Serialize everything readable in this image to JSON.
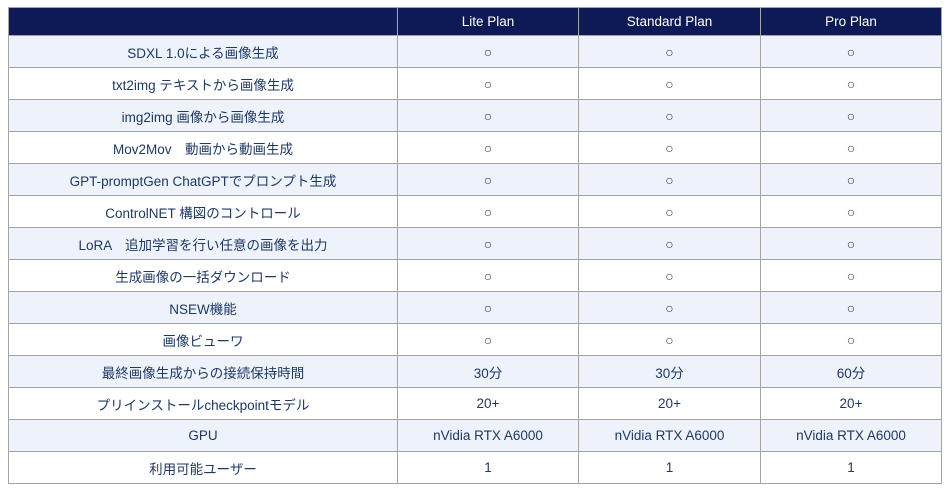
{
  "table": {
    "header": {
      "feature_label": "",
      "plans": [
        "Lite Plan",
        "Standard Plan",
        "Pro Plan"
      ]
    },
    "rows": [
      {
        "feature": "SDXL 1.0による画像生成",
        "values": [
          "○",
          "○",
          "○"
        ]
      },
      {
        "feature": "txt2img テキストから画像生成",
        "values": [
          "○",
          "○",
          "○"
        ]
      },
      {
        "feature": "img2img 画像から画像生成",
        "values": [
          "○",
          "○",
          "○"
        ]
      },
      {
        "feature": "Mov2Mov　動画から動画生成",
        "values": [
          "○",
          "○",
          "○"
        ]
      },
      {
        "feature": "GPT-promptGen ChatGPTでプロンプト生成",
        "values": [
          "○",
          "○",
          "○"
        ]
      },
      {
        "feature": "ControlNET 構図のコントロール",
        "values": [
          "○",
          "○",
          "○"
        ]
      },
      {
        "feature": "LoRA　追加学習を行い任意の画像を出力",
        "values": [
          "○",
          "○",
          "○"
        ]
      },
      {
        "feature": "生成画像の一括ダウンロード",
        "values": [
          "○",
          "○",
          "○"
        ]
      },
      {
        "feature": "NSEW機能",
        "values": [
          "○",
          "○",
          "○"
        ]
      },
      {
        "feature": "画像ビューワ",
        "values": [
          "○",
          "○",
          "○"
        ]
      },
      {
        "feature": "最終画像生成からの接続保持時間",
        "values": [
          "30分",
          "30分",
          "60分"
        ]
      },
      {
        "feature": "プリインストールcheckpointモデル",
        "values": [
          "20+",
          "20+",
          "20+"
        ]
      },
      {
        "feature": "GPU",
        "values": [
          "nVidia RTX A6000",
          "nVidia RTX A6000",
          "nVidia RTX A6000"
        ]
      },
      {
        "feature": "利用可能ユーザー",
        "values": [
          "1",
          "1",
          "1"
        ]
      }
    ]
  },
  "colors": {
    "header_bg": "#0d1a55",
    "header_text": "#ffffff",
    "alt_row_bg": "#eef2fb",
    "row_bg": "#ffffff",
    "body_text": "#1f3864",
    "border": "#a3a3a3"
  }
}
